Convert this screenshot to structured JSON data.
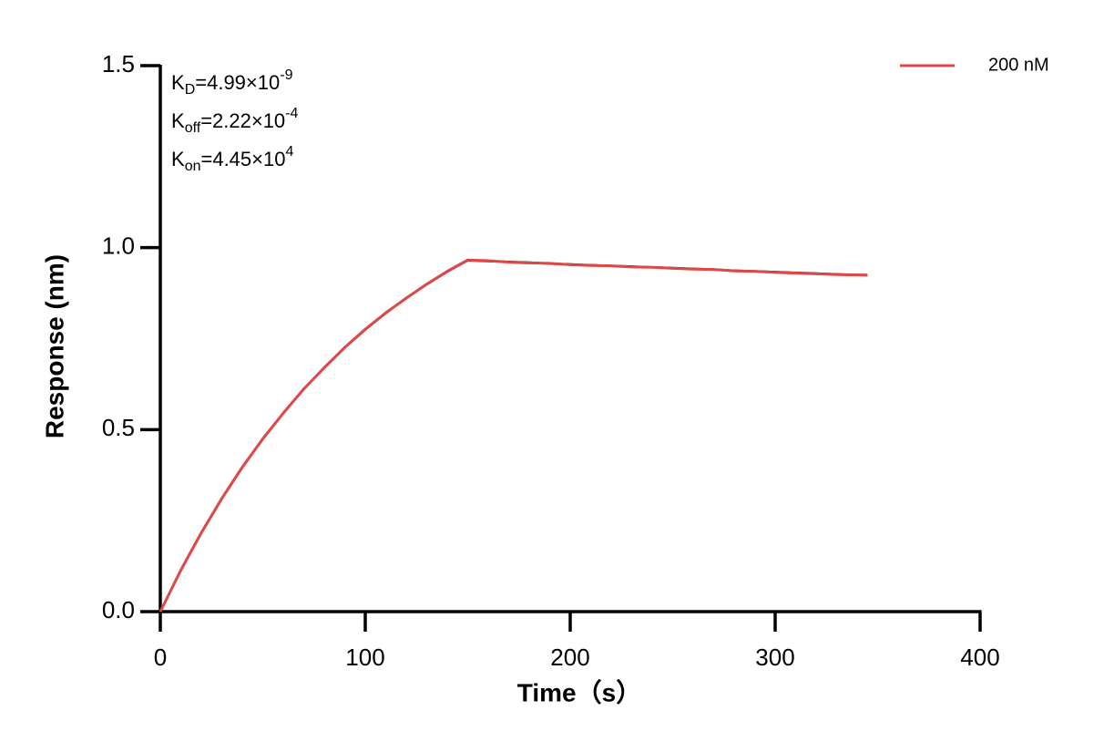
{
  "chart_data": {
    "type": "line",
    "x_label": "Time（s）",
    "y_label": "Response (nm)",
    "annotations": [
      {
        "main": "K",
        "sub": "D",
        "text": "=4.99×10",
        "sup": "-9"
      },
      {
        "main": "K",
        "sub": "off",
        "text": "=2.22×10",
        "sup": "-4"
      },
      {
        "main": "K",
        "sub": "on",
        "text": "=4.45×10",
        "sup": "4"
      }
    ],
    "x": [
      0,
      10,
      20,
      30,
      40,
      50,
      60,
      70,
      80,
      90,
      100,
      110,
      120,
      130,
      140,
      150,
      160,
      170,
      180,
      190,
      200,
      210,
      220,
      230,
      240,
      250,
      260,
      270,
      280,
      290,
      300,
      310,
      320,
      330,
      340,
      345
    ],
    "series": [
      {
        "color": "#000000",
        "values": [
          0,
          0.113,
          0.216,
          0.31,
          0.396,
          0.474,
          0.546,
          0.611,
          0.671,
          0.725,
          0.775,
          0.82,
          0.862,
          0.899,
          0.934,
          0.965,
          0.963,
          0.961,
          0.959,
          0.956,
          0.954,
          0.952,
          0.95,
          0.948,
          0.946,
          0.944,
          0.942,
          0.94,
          0.937,
          0.935,
          0.933,
          0.931,
          0.929,
          0.927,
          0.925,
          0.924
        ]
      },
      {
        "name": "200 nM",
        "color": "#e04848",
        "values": [
          0,
          0.114,
          0.217,
          0.311,
          0.397,
          0.475,
          0.545,
          0.612,
          0.67,
          0.726,
          0.776,
          0.821,
          0.861,
          0.9,
          0.935,
          0.966,
          0.964,
          0.96,
          0.958,
          0.957,
          0.953,
          0.951,
          0.95,
          0.947,
          0.946,
          0.943,
          0.941,
          0.94,
          0.936,
          0.935,
          0.932,
          0.93,
          0.928,
          0.926,
          0.925,
          0.925
        ]
      }
    ],
    "xlim": [
      0,
      400
    ],
    "xticks": [
      0,
      100,
      200,
      300,
      400
    ],
    "ylim": [
      0,
      1.5
    ],
    "yticks": [
      {
        "value": 0,
        "label": "0.0"
      },
      {
        "value": 0.5,
        "label": "0.5"
      },
      {
        "value": 1.0,
        "label": "1.0"
      },
      {
        "value": 1.5,
        "label": "1.5"
      }
    ],
    "legend_position": "upper right",
    "grid": false
  }
}
